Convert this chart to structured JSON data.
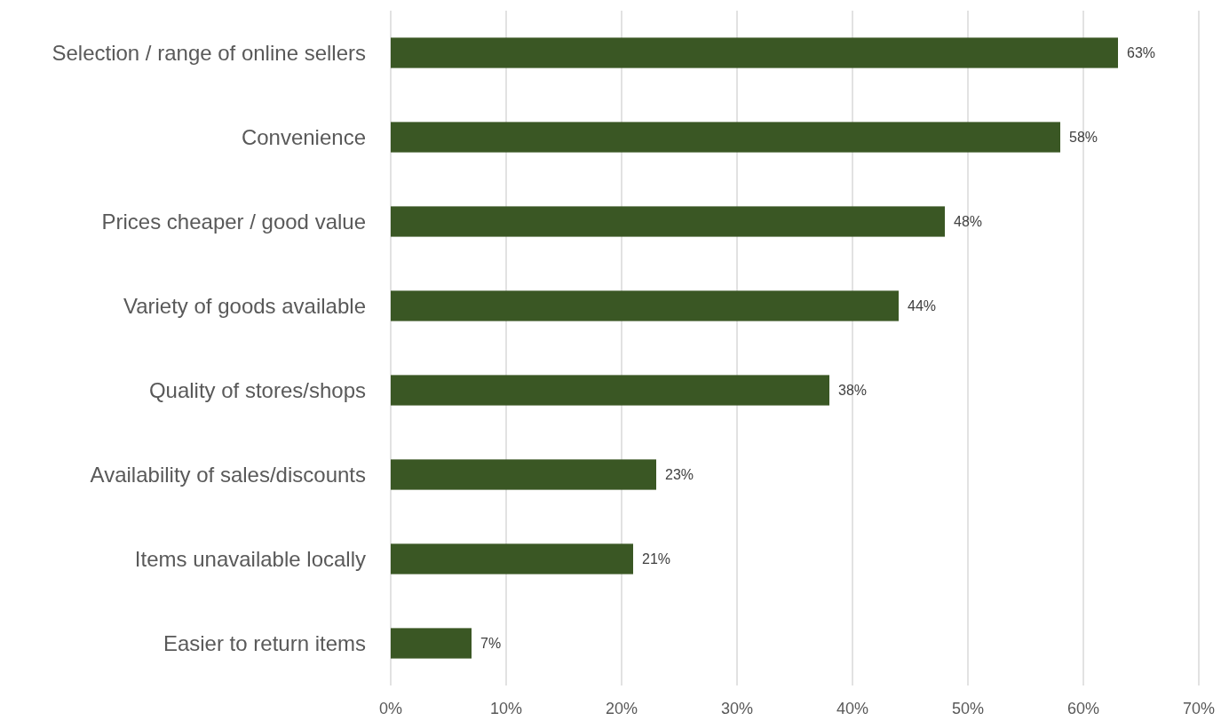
{
  "chart_data": {
    "type": "bar",
    "orientation": "horizontal",
    "categories": [
      "Selection / range of online sellers",
      "Convenience",
      "Prices cheaper / good value",
      "Variety of goods available",
      "Quality of stores/shops",
      "Availability of sales/discounts",
      "Items unavailable locally",
      "Easier to return items"
    ],
    "values": [
      63,
      58,
      48,
      44,
      38,
      23,
      21,
      7
    ],
    "value_labels": [
      "63%",
      "58%",
      "48%",
      "44%",
      "38%",
      "23%",
      "21%",
      "7%"
    ],
    "color": "#3a5724",
    "xlim": [
      0,
      70
    ],
    "xticks": [
      {
        "value": 0,
        "label": "0%"
      },
      {
        "value": 10,
        "label": "10%"
      },
      {
        "value": 20,
        "label": "20%"
      },
      {
        "value": 30,
        "label": "30%"
      },
      {
        "value": 40,
        "label": "40%"
      },
      {
        "value": 50,
        "label": "50%"
      },
      {
        "value": 60,
        "label": "60%"
      },
      {
        "value": 70,
        "label": "70%"
      }
    ],
    "grid": "x"
  }
}
